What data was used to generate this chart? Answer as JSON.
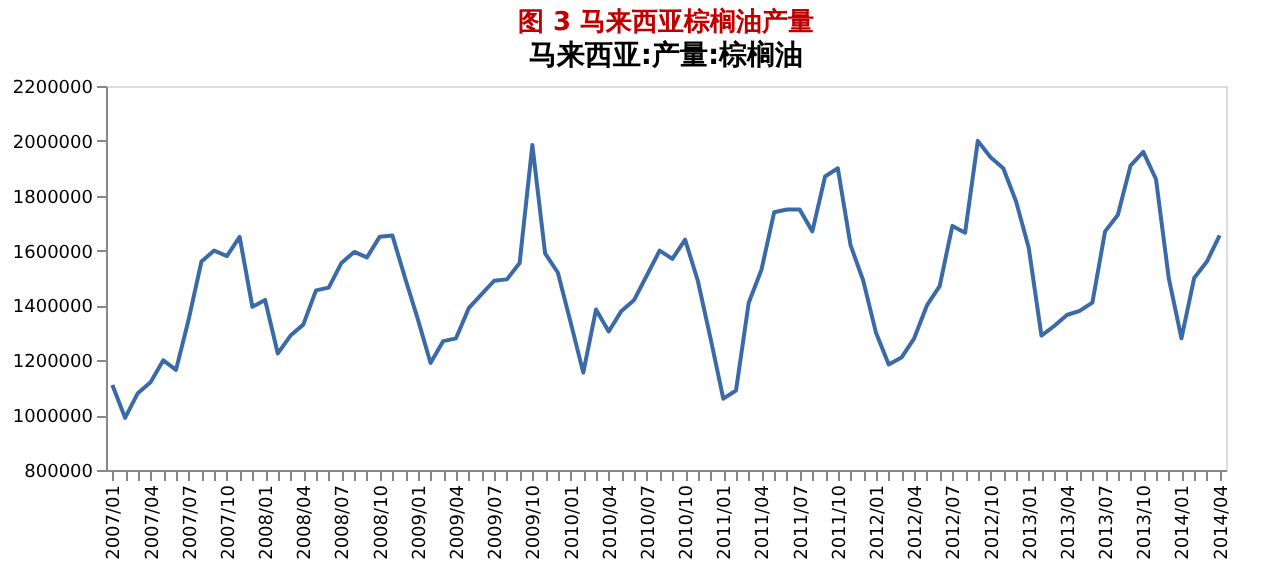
{
  "chart_data": {
    "type": "line",
    "title": "图 3  马来西亚棕榈油产量",
    "subtitle": "马来西亚:产量:棕榈油",
    "categories": [
      "2007/01",
      null,
      null,
      "2007/04",
      null,
      null,
      "2007/07",
      null,
      null,
      "2007/10",
      null,
      null,
      "2008/01",
      null,
      null,
      "2008/04",
      null,
      null,
      "2008/07",
      null,
      null,
      "2008/10",
      null,
      null,
      "2009/01",
      null,
      null,
      "2009/04",
      null,
      null,
      "2009/07",
      null,
      null,
      "2009/10",
      null,
      null,
      "2010/01",
      null,
      null,
      "2010/04",
      null,
      null,
      "2010/07",
      null,
      null,
      "2010/10",
      null,
      null,
      "2011/01",
      null,
      null,
      "2011/04",
      null,
      null,
      "2011/07",
      null,
      null,
      "2011/10",
      null,
      null,
      "2012/01",
      null,
      null,
      "2012/04",
      null,
      null,
      "2012/07",
      null,
      null,
      "2012/10",
      null,
      null,
      "2013/01",
      null,
      null,
      "2013/04",
      null,
      null,
      "2013/07",
      null,
      null,
      "2013/10",
      null,
      null,
      "2014/01",
      null,
      null,
      "2014/04"
    ],
    "series": [
      {
        "color": "#3a6aa8",
        "values": [
          1110000,
          990000,
          1080000,
          1120000,
          1200000,
          1165000,
          1350000,
          1560000,
          1600000,
          1580000,
          1650000,
          1395000,
          1420000,
          1225000,
          1290000,
          1330000,
          1455000,
          1465000,
          1555000,
          1595000,
          1575000,
          1650000,
          1655000,
          1500000,
          1350000,
          1190000,
          1270000,
          1280000,
          1390000,
          1440000,
          1490000,
          1495000,
          1555000,
          1985000,
          1590000,
          1520000,
          1340000,
          1155000,
          1385000,
          1305000,
          1380000,
          1420000,
          1510000,
          1600000,
          1570000,
          1640000,
          1490000,
          1280000,
          1060000,
          1090000,
          1410000,
          1530000,
          1740000,
          1750000,
          1750000,
          1670000,
          1870000,
          1900000,
          1620000,
          1490000,
          1300000,
          1185000,
          1210000,
          1280000,
          1400000,
          1470000,
          1690000,
          1665000,
          2000000,
          1940000,
          1900000,
          1780000,
          1610000,
          1290000,
          1325000,
          1365000,
          1380000,
          1410000,
          1670000,
          1730000,
          1910000,
          1960000,
          1860000,
          1500000,
          1280000,
          1500000,
          1560000,
          1655000
        ]
      }
    ],
    "ylim": [
      800000,
      2200000
    ],
    "yticks": [
      800000,
      1000000,
      1200000,
      1400000,
      1600000,
      1800000,
      2000000,
      2200000
    ],
    "grid": false,
    "legend": false
  }
}
